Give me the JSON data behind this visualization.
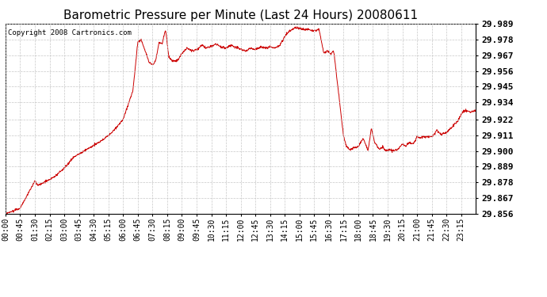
{
  "title": "Barometric Pressure per Minute (Last 24 Hours) 20080611",
  "copyright": "Copyright 2008 Cartronics.com",
  "line_color": "#cc0000",
  "background_color": "#ffffff",
  "grid_color": "#c8c8c8",
  "ylim": [
    29.856,
    29.989
  ],
  "yticks": [
    29.856,
    29.867,
    29.878,
    29.889,
    29.9,
    29.911,
    29.922,
    29.934,
    29.945,
    29.956,
    29.967,
    29.978,
    29.989
  ],
  "xtick_labels": [
    "00:00",
    "00:45",
    "01:30",
    "02:15",
    "03:00",
    "03:45",
    "04:30",
    "05:15",
    "06:00",
    "06:45",
    "07:30",
    "08:15",
    "09:00",
    "09:45",
    "10:30",
    "11:15",
    "12:00",
    "12:45",
    "13:30",
    "14:15",
    "15:00",
    "15:45",
    "16:30",
    "17:15",
    "18:00",
    "18:45",
    "19:30",
    "20:15",
    "21:00",
    "21:45",
    "22:30",
    "23:15"
  ],
  "title_fontsize": 11,
  "copyright_fontsize": 6.5,
  "tick_fontsize": 7,
  "ytick_fontsize": 8
}
